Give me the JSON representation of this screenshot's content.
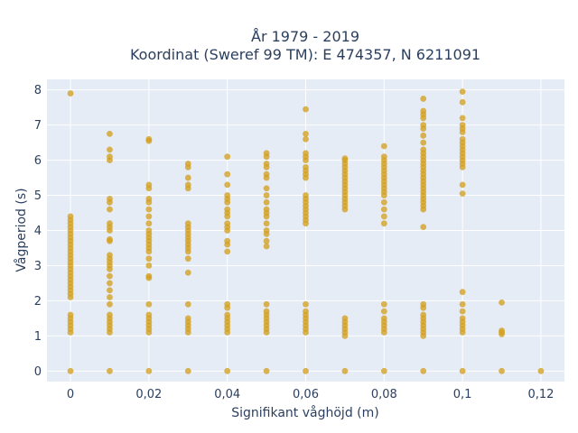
{
  "chart_data": {
    "type": "scatter",
    "title_line1": "År 1979 - 2019",
    "title_line2": "Koordinat (Sweref 99 TM): E 474357, N 6211091",
    "xlabel": "Signifikant våghöjd (m)",
    "ylabel": "Vågperiod (s)",
    "xlim": [
      -0.006,
      0.126
    ],
    "ylim": [
      -0.3,
      8.3
    ],
    "x_ticks": [
      0,
      0.02,
      0.04,
      0.06,
      0.08,
      0.1,
      0.12
    ],
    "x_tick_labels": [
      "0",
      "0,02",
      "0,04",
      "0,06",
      "0,08",
      "0,1",
      "0,12"
    ],
    "y_ticks": [
      0,
      1,
      2,
      3,
      4,
      5,
      6,
      7,
      8
    ],
    "y_tick_labels": [
      "0",
      "1",
      "2",
      "3",
      "4",
      "5",
      "6",
      "7",
      "8"
    ],
    "grid": true,
    "colors": {
      "marker": "#d4a020",
      "plot_bg": "#e5ecf6",
      "grid": "#ffffff",
      "text": "#2a3f5f"
    },
    "points": [
      [
        0,
        0
      ],
      [
        0,
        1.1
      ],
      [
        0,
        1.2
      ],
      [
        0,
        1.3
      ],
      [
        0,
        1.4
      ],
      [
        0,
        1.5
      ],
      [
        0,
        1.6
      ],
      [
        0,
        2.1
      ],
      [
        0,
        2.2
      ],
      [
        0,
        2.3
      ],
      [
        0,
        2.4
      ],
      [
        0,
        2.5
      ],
      [
        0,
        2.6
      ],
      [
        0,
        2.7
      ],
      [
        0,
        2.8
      ],
      [
        0,
        2.9
      ],
      [
        0,
        3.0
      ],
      [
        0,
        3.1
      ],
      [
        0,
        3.2
      ],
      [
        0,
        3.3
      ],
      [
        0,
        3.4
      ],
      [
        0,
        3.5
      ],
      [
        0,
        3.6
      ],
      [
        0,
        3.7
      ],
      [
        0,
        3.8
      ],
      [
        0,
        3.9
      ],
      [
        0,
        4.0
      ],
      [
        0,
        4.1
      ],
      [
        0,
        4.2
      ],
      [
        0,
        4.3
      ],
      [
        0,
        4.4
      ],
      [
        0,
        7.9
      ],
      [
        0.01,
        0
      ],
      [
        0.01,
        1.1
      ],
      [
        0.01,
        1.2
      ],
      [
        0.01,
        1.3
      ],
      [
        0.01,
        1.4
      ],
      [
        0.01,
        1.5
      ],
      [
        0.01,
        1.6
      ],
      [
        0.01,
        1.9
      ],
      [
        0.01,
        2.1
      ],
      [
        0.01,
        2.3
      ],
      [
        0.01,
        2.5
      ],
      [
        0.01,
        2.7
      ],
      [
        0.01,
        2.9
      ],
      [
        0.01,
        3.0
      ],
      [
        0.01,
        3.1
      ],
      [
        0.01,
        3.2
      ],
      [
        0.01,
        3.3
      ],
      [
        0.01,
        3.7
      ],
      [
        0.01,
        3.75
      ],
      [
        0.01,
        4.0
      ],
      [
        0.01,
        4.1
      ],
      [
        0.01,
        4.2
      ],
      [
        0.01,
        4.6
      ],
      [
        0.01,
        4.8
      ],
      [
        0.01,
        4.9
      ],
      [
        0.01,
        6.0
      ],
      [
        0.01,
        6.1
      ],
      [
        0.01,
        6.3
      ],
      [
        0.01,
        6.75
      ],
      [
        0.02,
        0
      ],
      [
        0.02,
        1.1
      ],
      [
        0.02,
        1.2
      ],
      [
        0.02,
        1.3
      ],
      [
        0.02,
        1.4
      ],
      [
        0.02,
        1.5
      ],
      [
        0.02,
        1.6
      ],
      [
        0.02,
        1.9
      ],
      [
        0.02,
        2.65
      ],
      [
        0.02,
        2.7
      ],
      [
        0.02,
        3.0
      ],
      [
        0.02,
        3.2
      ],
      [
        0.02,
        3.4
      ],
      [
        0.02,
        3.5
      ],
      [
        0.02,
        3.6
      ],
      [
        0.02,
        3.7
      ],
      [
        0.02,
        3.8
      ],
      [
        0.02,
        3.9
      ],
      [
        0.02,
        4.0
      ],
      [
        0.02,
        4.2
      ],
      [
        0.02,
        4.4
      ],
      [
        0.02,
        4.6
      ],
      [
        0.02,
        4.8
      ],
      [
        0.02,
        4.9
      ],
      [
        0.02,
        5.2
      ],
      [
        0.02,
        5.3
      ],
      [
        0.02,
        6.55
      ],
      [
        0.02,
        6.6
      ],
      [
        0.03,
        0
      ],
      [
        0.03,
        1.1
      ],
      [
        0.03,
        1.2
      ],
      [
        0.03,
        1.3
      ],
      [
        0.03,
        1.4
      ],
      [
        0.03,
        1.5
      ],
      [
        0.03,
        1.9
      ],
      [
        0.03,
        2.8
      ],
      [
        0.03,
        3.2
      ],
      [
        0.03,
        3.4
      ],
      [
        0.03,
        3.5
      ],
      [
        0.03,
        3.6
      ],
      [
        0.03,
        3.7
      ],
      [
        0.03,
        3.8
      ],
      [
        0.03,
        3.9
      ],
      [
        0.03,
        4.0
      ],
      [
        0.03,
        4.1
      ],
      [
        0.03,
        4.2
      ],
      [
        0.03,
        5.2
      ],
      [
        0.03,
        5.3
      ],
      [
        0.03,
        5.5
      ],
      [
        0.03,
        5.8
      ],
      [
        0.03,
        5.9
      ],
      [
        0.04,
        0
      ],
      [
        0.04,
        1.1
      ],
      [
        0.04,
        1.2
      ],
      [
        0.04,
        1.3
      ],
      [
        0.04,
        1.4
      ],
      [
        0.04,
        1.5
      ],
      [
        0.04,
        1.6
      ],
      [
        0.04,
        1.8
      ],
      [
        0.04,
        1.9
      ],
      [
        0.04,
        3.4
      ],
      [
        0.04,
        3.6
      ],
      [
        0.04,
        3.7
      ],
      [
        0.04,
        4.0
      ],
      [
        0.04,
        4.1
      ],
      [
        0.04,
        4.2
      ],
      [
        0.04,
        4.4
      ],
      [
        0.04,
        4.5
      ],
      [
        0.04,
        4.6
      ],
      [
        0.04,
        4.8
      ],
      [
        0.04,
        4.9
      ],
      [
        0.04,
        5.0
      ],
      [
        0.04,
        5.3
      ],
      [
        0.04,
        5.6
      ],
      [
        0.04,
        6.1
      ],
      [
        0.05,
        0
      ],
      [
        0.05,
        1.1
      ],
      [
        0.05,
        1.2
      ],
      [
        0.05,
        1.3
      ],
      [
        0.05,
        1.4
      ],
      [
        0.05,
        1.5
      ],
      [
        0.05,
        1.6
      ],
      [
        0.05,
        1.7
      ],
      [
        0.05,
        1.9
      ],
      [
        0.05,
        3.55
      ],
      [
        0.05,
        3.7
      ],
      [
        0.05,
        3.9
      ],
      [
        0.05,
        4.0
      ],
      [
        0.05,
        4.2
      ],
      [
        0.05,
        4.4
      ],
      [
        0.05,
        4.5
      ],
      [
        0.05,
        4.6
      ],
      [
        0.05,
        4.8
      ],
      [
        0.05,
        5.0
      ],
      [
        0.05,
        5.2
      ],
      [
        0.05,
        5.5
      ],
      [
        0.05,
        5.6
      ],
      [
        0.05,
        5.8
      ],
      [
        0.05,
        5.9
      ],
      [
        0.05,
        6.1
      ],
      [
        0.05,
        6.2
      ],
      [
        0.06,
        0
      ],
      [
        0.06,
        1.1
      ],
      [
        0.06,
        1.2
      ],
      [
        0.06,
        1.3
      ],
      [
        0.06,
        1.4
      ],
      [
        0.06,
        1.5
      ],
      [
        0.06,
        1.6
      ],
      [
        0.06,
        1.7
      ],
      [
        0.06,
        1.9
      ],
      [
        0.06,
        4.2
      ],
      [
        0.06,
        4.3
      ],
      [
        0.06,
        4.4
      ],
      [
        0.06,
        4.5
      ],
      [
        0.06,
        4.6
      ],
      [
        0.06,
        4.7
      ],
      [
        0.06,
        4.8
      ],
      [
        0.06,
        4.9
      ],
      [
        0.06,
        5.0
      ],
      [
        0.06,
        5.5
      ],
      [
        0.06,
        5.6
      ],
      [
        0.06,
        5.7
      ],
      [
        0.06,
        5.8
      ],
      [
        0.06,
        6.0
      ],
      [
        0.06,
        6.1
      ],
      [
        0.06,
        6.2
      ],
      [
        0.06,
        6.6
      ],
      [
        0.06,
        6.75
      ],
      [
        0.06,
        7.45
      ],
      [
        0.07,
        0
      ],
      [
        0.07,
        1.0
      ],
      [
        0.07,
        1.1
      ],
      [
        0.07,
        1.2
      ],
      [
        0.07,
        1.3
      ],
      [
        0.07,
        1.4
      ],
      [
        0.07,
        1.5
      ],
      [
        0.07,
        4.6
      ],
      [
        0.07,
        4.7
      ],
      [
        0.07,
        4.8
      ],
      [
        0.07,
        4.9
      ],
      [
        0.07,
        5.0
      ],
      [
        0.07,
        5.1
      ],
      [
        0.07,
        5.2
      ],
      [
        0.07,
        5.3
      ],
      [
        0.07,
        5.4
      ],
      [
        0.07,
        5.5
      ],
      [
        0.07,
        5.6
      ],
      [
        0.07,
        5.7
      ],
      [
        0.07,
        5.8
      ],
      [
        0.07,
        5.9
      ],
      [
        0.07,
        6.0
      ],
      [
        0.07,
        6.05
      ],
      [
        0.08,
        0
      ],
      [
        0.08,
        1.1
      ],
      [
        0.08,
        1.2
      ],
      [
        0.08,
        1.3
      ],
      [
        0.08,
        1.4
      ],
      [
        0.08,
        1.5
      ],
      [
        0.08,
        1.7
      ],
      [
        0.08,
        1.9
      ],
      [
        0.08,
        4.2
      ],
      [
        0.08,
        4.4
      ],
      [
        0.08,
        4.6
      ],
      [
        0.08,
        4.8
      ],
      [
        0.08,
        5.0
      ],
      [
        0.08,
        5.1
      ],
      [
        0.08,
        5.2
      ],
      [
        0.08,
        5.3
      ],
      [
        0.08,
        5.4
      ],
      [
        0.08,
        5.5
      ],
      [
        0.08,
        5.6
      ],
      [
        0.08,
        5.7
      ],
      [
        0.08,
        5.8
      ],
      [
        0.08,
        5.9
      ],
      [
        0.08,
        6.0
      ],
      [
        0.08,
        6.1
      ],
      [
        0.08,
        6.4
      ],
      [
        0.09,
        0
      ],
      [
        0.09,
        1.0
      ],
      [
        0.09,
        1.1
      ],
      [
        0.09,
        1.2
      ],
      [
        0.09,
        1.3
      ],
      [
        0.09,
        1.4
      ],
      [
        0.09,
        1.5
      ],
      [
        0.09,
        1.6
      ],
      [
        0.09,
        1.8
      ],
      [
        0.09,
        1.9
      ],
      [
        0.09,
        4.1
      ],
      [
        0.09,
        4.6
      ],
      [
        0.09,
        4.7
      ],
      [
        0.09,
        4.8
      ],
      [
        0.09,
        4.9
      ],
      [
        0.09,
        5.0
      ],
      [
        0.09,
        5.1
      ],
      [
        0.09,
        5.2
      ],
      [
        0.09,
        5.3
      ],
      [
        0.09,
        5.4
      ],
      [
        0.09,
        5.5
      ],
      [
        0.09,
        5.6
      ],
      [
        0.09,
        5.7
      ],
      [
        0.09,
        5.8
      ],
      [
        0.09,
        5.9
      ],
      [
        0.09,
        6.0
      ],
      [
        0.09,
        6.1
      ],
      [
        0.09,
        6.2
      ],
      [
        0.09,
        6.3
      ],
      [
        0.09,
        6.5
      ],
      [
        0.09,
        6.7
      ],
      [
        0.09,
        6.9
      ],
      [
        0.09,
        7.0
      ],
      [
        0.09,
        7.2
      ],
      [
        0.09,
        7.3
      ],
      [
        0.09,
        7.4
      ],
      [
        0.09,
        7.75
      ],
      [
        0.1,
        0
      ],
      [
        0.1,
        1.1
      ],
      [
        0.1,
        1.2
      ],
      [
        0.1,
        1.3
      ],
      [
        0.1,
        1.4
      ],
      [
        0.1,
        1.5
      ],
      [
        0.1,
        1.7
      ],
      [
        0.1,
        1.9
      ],
      [
        0.1,
        2.25
      ],
      [
        0.1,
        5.05
      ],
      [
        0.1,
        5.3
      ],
      [
        0.1,
        5.8
      ],
      [
        0.1,
        5.9
      ],
      [
        0.1,
        6.0
      ],
      [
        0.1,
        6.1
      ],
      [
        0.1,
        6.2
      ],
      [
        0.1,
        6.3
      ],
      [
        0.1,
        6.4
      ],
      [
        0.1,
        6.5
      ],
      [
        0.1,
        6.6
      ],
      [
        0.1,
        6.8
      ],
      [
        0.1,
        6.9
      ],
      [
        0.1,
        7.0
      ],
      [
        0.1,
        7.2
      ],
      [
        0.1,
        7.65
      ],
      [
        0.1,
        7.95
      ],
      [
        0.11,
        0
      ],
      [
        0.11,
        1.05
      ],
      [
        0.11,
        1.1
      ],
      [
        0.11,
        1.15
      ],
      [
        0.11,
        1.95
      ],
      [
        0.12,
        0
      ]
    ]
  }
}
